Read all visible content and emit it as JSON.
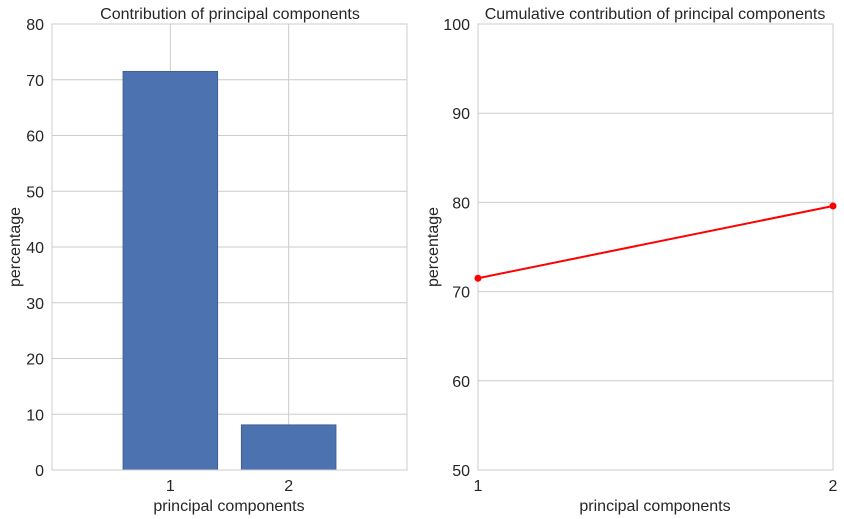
{
  "chart_data": [
    {
      "type": "bar",
      "title": "Contribution of principal components",
      "xlabel": "principal components",
      "ylabel": "percentage",
      "categories": [
        "1",
        "2"
      ],
      "values": [
        71.5,
        8.1
      ],
      "ylim": [
        0,
        80
      ],
      "yticks": [
        0,
        10,
        20,
        30,
        40,
        50,
        60,
        70,
        80
      ],
      "grid": true,
      "bar_color": "#4c72b0"
    },
    {
      "type": "line",
      "title": "Cumulative contribution of principal components",
      "xlabel": "principal components",
      "ylabel": "percentage",
      "x": [
        1,
        2
      ],
      "values": [
        71.5,
        79.6
      ],
      "xlim": [
        1,
        2
      ],
      "xticks": [
        1,
        2
      ],
      "ylim": [
        50,
        100
      ],
      "yticks": [
        50,
        60,
        70,
        80,
        90,
        100
      ],
      "grid": true,
      "line_color": "#ff0000"
    }
  ]
}
